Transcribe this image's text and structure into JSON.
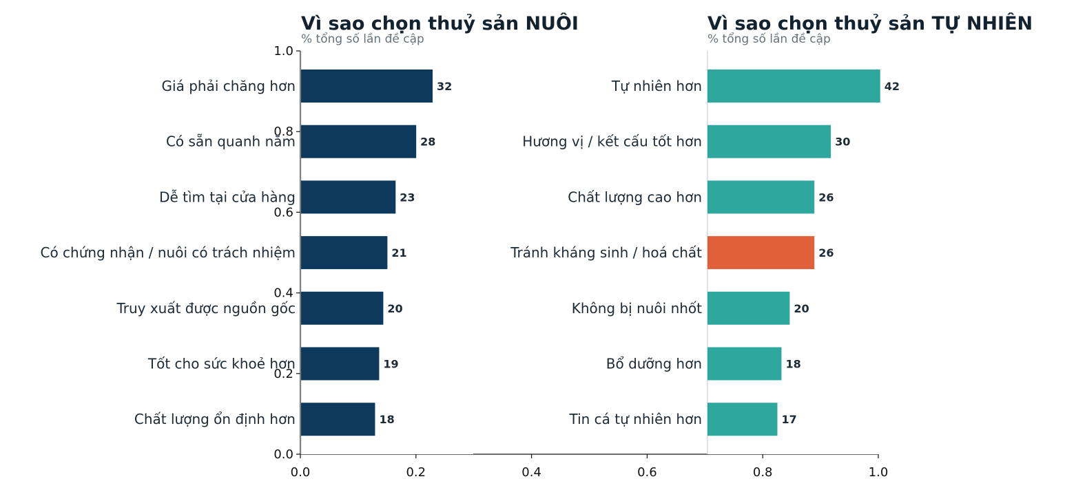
{
  "chart_data": [
    {
      "type": "bar",
      "orientation": "horizontal",
      "title": "Vì sao chọn thuỷ sản NUÔI",
      "subtitle": "% tổng số lần đề cập",
      "categories": [
        "Giá phải chăng hơn",
        "Có sẵn quanh năm",
        "Dễ tìm tại cửa hàng",
        "Có chứng nhận / nuôi có trách nhiệm",
        "Truy xuất được nguồn gốc",
        "Tốt cho sức khoẻ hơn",
        "Chất lượng ổn định hơn"
      ],
      "values": [
        32,
        28,
        23,
        21,
        20,
        19,
        18
      ],
      "value_labels": [
        "32",
        "28",
        "23",
        "21",
        "20",
        "19",
        "18"
      ],
      "colors": [
        "#0d3a5c",
        "#0d3a5c",
        "#0d3a5c",
        "#0d3a5c",
        "#0d3a5c",
        "#0d3a5c",
        "#0d3a5c"
      ],
      "xlim": [
        0,
        170
      ]
    },
    {
      "type": "bar",
      "orientation": "horizontal",
      "title": "Vì sao chọn thuỷ sản TỰ NHIÊN",
      "subtitle": "% tổng số lần đề cập",
      "categories": [
        "Tự nhiên hơn",
        "Hương vị / kết cấu tốt hơn",
        "Chất lượng cao hơn",
        "Tránh kháng sinh / hoá chất",
        "Không bị nuôi nhốt",
        "Bổ dưỡng hơn",
        "Tin cá tự nhiên hơn"
      ],
      "values": [
        42,
        30,
        26,
        26,
        20,
        18,
        17
      ],
      "value_labels": [
        "42",
        "30",
        "26",
        "26",
        "20",
        "18",
        "17"
      ],
      "colors": [
        "#2ea89f",
        "#2ea89f",
        "#2ea89f",
        "#e0603b",
        "#2ea89f",
        "#2ea89f",
        "#2ea89f"
      ],
      "xlim": [
        0,
        170
      ]
    }
  ],
  "background_axes": {
    "x_ticks": [
      "0.0",
      "0.2",
      "0.4",
      "0.6",
      "0.8",
      "1.0"
    ],
    "y_ticks": [
      "0.0",
      "0.2",
      "0.4",
      "0.6",
      "0.8",
      "1.0"
    ],
    "xlim": [
      0,
      1
    ],
    "ylim": [
      0,
      1
    ]
  }
}
